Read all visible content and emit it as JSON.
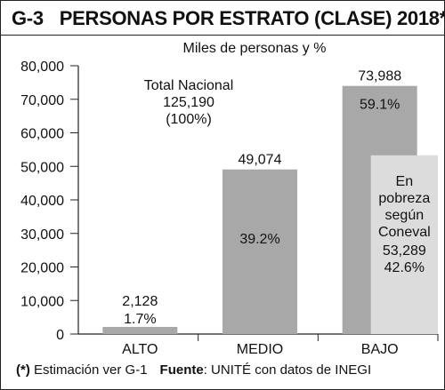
{
  "title_code": "G-3",
  "title_text": "PERSONAS POR ESTRATO (CLASE) 2018*",
  "subtitle": "Miles de personas y %",
  "footer": {
    "note_mark": "(*)",
    "note_text": " Estimación ver G-1",
    "source_label": "Fuente",
    "source_text": ": UNITÉ con datos de INEGI"
  },
  "chart_data": {
    "type": "bar",
    "categories": [
      "ALTO",
      "MEDIO",
      "BAJO"
    ],
    "values": [
      2128,
      49074,
      73988
    ],
    "value_labels": [
      "2,128",
      "49,074",
      "73,988"
    ],
    "percent_labels": [
      "1.7%",
      "39.2%",
      "59.1%"
    ],
    "ylim": [
      0,
      80000
    ],
    "yticks": [
      0,
      10000,
      20000,
      30000,
      40000,
      50000,
      60000,
      70000,
      80000
    ],
    "ytick_labels": [
      "0",
      "10,000",
      "20,000",
      "30,000",
      "40,000",
      "50,000",
      "60,000",
      "70,000",
      "80,000"
    ],
    "bar_color": "#a8a8a8",
    "total_annotation": [
      "Total Nacional",
      "125,190",
      "(100%)"
    ],
    "poverty": {
      "value": 53289,
      "lines": [
        "En",
        "pobreza",
        "según",
        "Coneval"
      ],
      "value_label": "53,289",
      "percent_label": "42.6%",
      "color": "#dcdcdc"
    }
  }
}
